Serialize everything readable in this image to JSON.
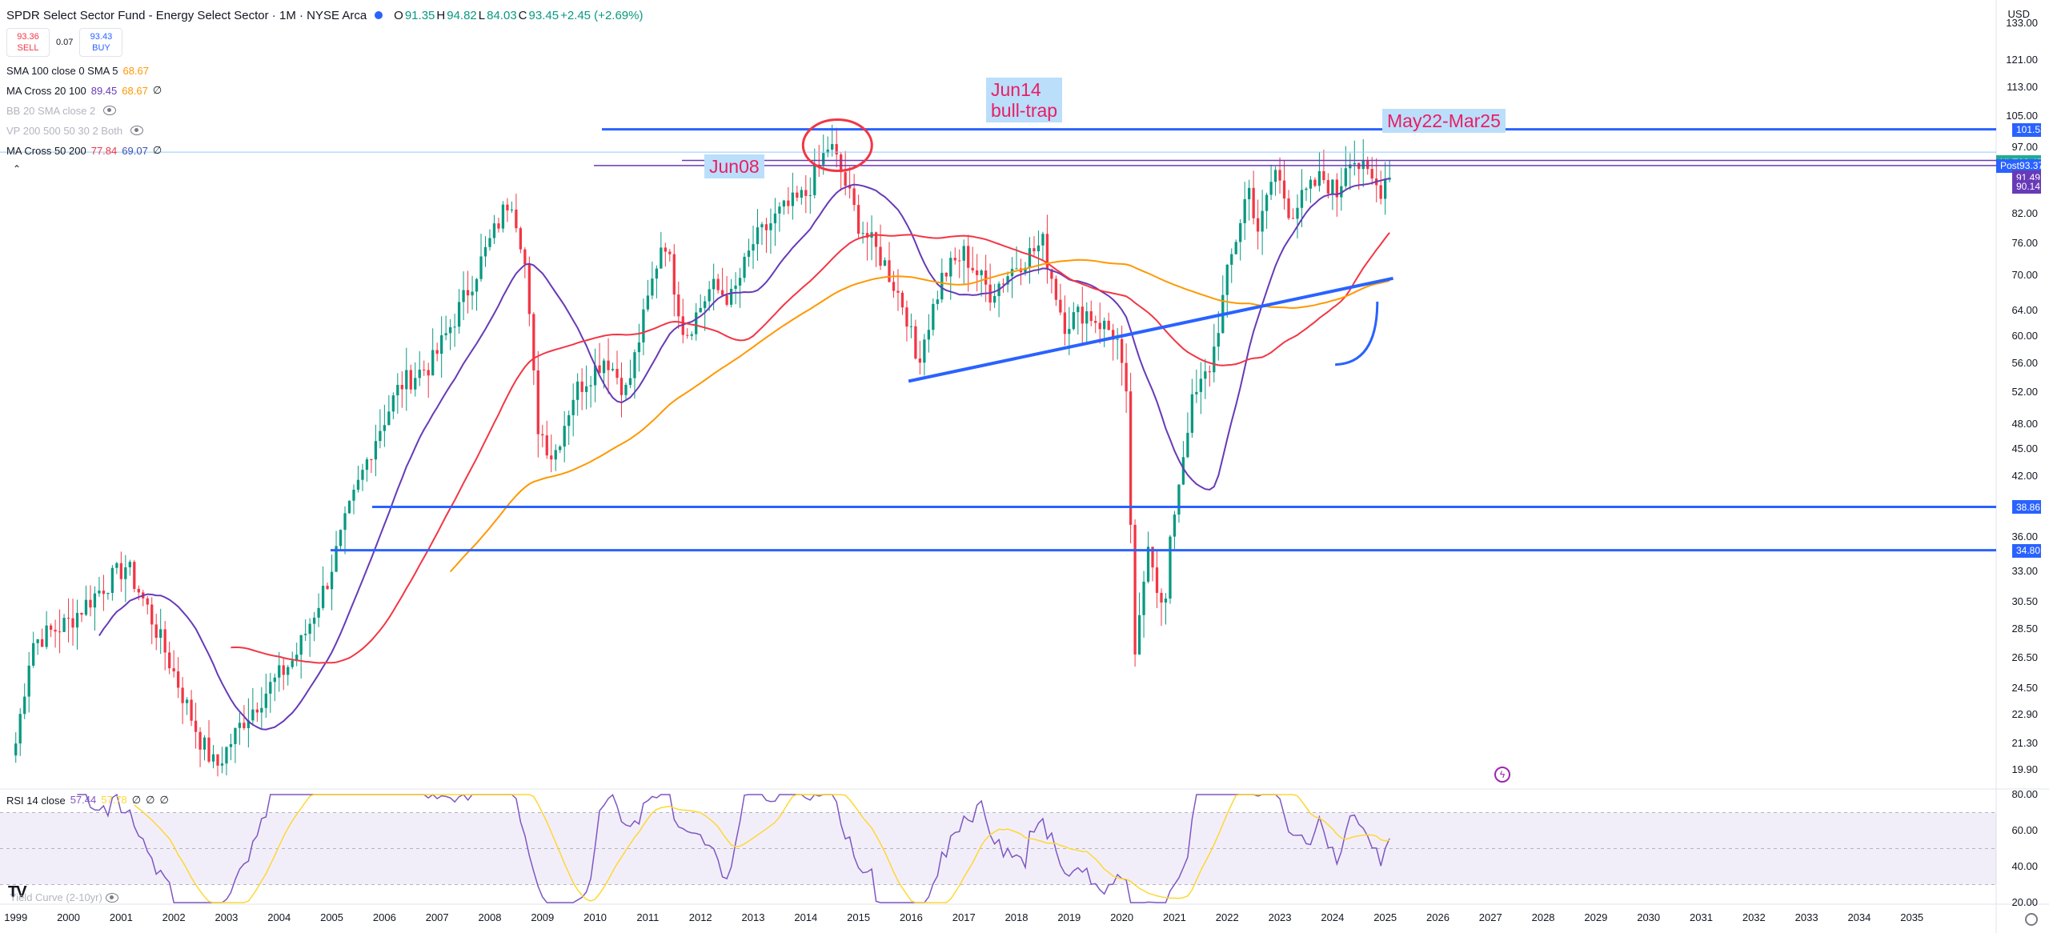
{
  "header": {
    "title": "SPDR Select Sector Fund - Energy Select Sector · 1M · NYSE Arca",
    "ohlc": [
      {
        "label": "O",
        "value": "91.35"
      },
      {
        "label": "H",
        "value": "94.82"
      },
      {
        "label": "L",
        "value": "84.03"
      },
      {
        "label": "C",
        "value": "93.45"
      }
    ],
    "change": "+2.45 (+2.69%)",
    "currency": "USD"
  },
  "trade": {
    "sell_price": "93.36",
    "sell_label": "SELL",
    "spread": "0.07",
    "buy_price": "93.43",
    "buy_label": "BUY"
  },
  "indicators": [
    {
      "name": "SMA 100 close 0 SMA 5",
      "values": [
        {
          "v": "68.67",
          "color": "#ff9800"
        }
      ],
      "dim": false
    },
    {
      "name": "MA Cross 20 100",
      "values": [
        {
          "v": "89.45",
          "color": "#673ab7"
        },
        {
          "v": "68.67",
          "color": "#ff9800"
        },
        {
          "v": "∅",
          "color": "#131722"
        }
      ],
      "dim": false
    },
    {
      "name": "BB 20 SMA close 2",
      "values": [],
      "dim": true
    },
    {
      "name": "VP 200 500 50 30 2 Both",
      "values": [],
      "dim": true
    },
    {
      "name": "MA Cross 50 200",
      "values": [
        {
          "v": "77.84",
          "color": "#f23645"
        },
        {
          "v": "69.07",
          "color": "#3f51b5"
        },
        {
          "v": "∅",
          "color": "#131722"
        }
      ],
      "dim": false
    }
  ],
  "rsi_legend": {
    "name": "RSI 14 close",
    "values": [
      {
        "v": "57.44",
        "color": "#7e57c2"
      },
      {
        "v": "57.78",
        "color": "#fdd835"
      },
      {
        "v": "∅",
        "color": "#131722"
      },
      {
        "v": "∅",
        "color": "#131722"
      },
      {
        "v": "∅",
        "color": "#131722"
      }
    ]
  },
  "yield_label": "Yield Curve (2-10yr)",
  "logo": "TV",
  "annotations": {
    "jun08": "Jun08",
    "jun14": "Jun14\nbull-trap",
    "may22": "May22-Mar25"
  },
  "price_tags": [
    {
      "label": "",
      "value": "101.53",
      "color": "#2962ff",
      "price": 101.53
    },
    {
      "label": "XLE",
      "value": "93.45",
      "color": "#22ab94",
      "price": 93.45
    },
    {
      "label": "Post",
      "value": "93.37",
      "color": "#2962ff",
      "price": 92.6
    },
    {
      "label": "",
      "value": "91.49",
      "color": "#673ab7",
      "price": 89.9
    },
    {
      "label": "",
      "value": "90.14",
      "color": "#673ab7",
      "price": 87.8
    },
    {
      "label": "",
      "value": "38.86",
      "color": "#2962ff",
      "price": 38.86
    },
    {
      "label": "",
      "value": "34.80",
      "color": "#2962ff",
      "price": 34.8
    }
  ],
  "chart_data": {
    "type": "candlestick",
    "title": "SPDR Select Sector Fund - Energy Select Sector · 1M · NYSE Arca",
    "y_scale": "log",
    "ylim": [
      19,
      136
    ],
    "y_ticks": [
      "133.00",
      "121.00",
      "113.00",
      "105.00",
      "97.00",
      "89.00",
      "82.00",
      "76.00",
      "70.00",
      "64.00",
      "60.00",
      "56.00",
      "52.00",
      "48.00",
      "45.00",
      "42.00",
      "36.00",
      "33.00",
      "30.50",
      "28.50",
      "26.50",
      "24.50",
      "22.90",
      "21.30",
      "19.90"
    ],
    "x_ticks": [
      "1999",
      "2000",
      "2001",
      "2002",
      "2003",
      "2004",
      "2005",
      "2006",
      "2007",
      "2008",
      "2009",
      "2010",
      "2011",
      "2012",
      "2013",
      "2014",
      "2015",
      "2016",
      "2017",
      "2018",
      "2019",
      "2020",
      "2021",
      "2022",
      "2023",
      "2024",
      "2025",
      "2026",
      "2027",
      "2028",
      "2029",
      "2030",
      "2031",
      "2032",
      "2033",
      "2034",
      "2035"
    ],
    "xlim": [
      1998.7,
      2036.6
    ],
    "price_path": [
      [
        1999.0,
        21.3
      ],
      [
        1999.3,
        27.5
      ],
      [
        2000.0,
        29.0
      ],
      [
        2000.6,
        31.5
      ],
      [
        2001.1,
        33.5
      ],
      [
        2001.5,
        30.0
      ],
      [
        2002.0,
        25.5
      ],
      [
        2002.5,
        21.5
      ],
      [
        2002.8,
        20.0
      ],
      [
        2003.3,
        22.5
      ],
      [
        2003.8,
        24.5
      ],
      [
        2004.3,
        26.5
      ],
      [
        2004.9,
        32.0
      ],
      [
        2005.3,
        38.0
      ],
      [
        2005.8,
        46.0
      ],
      [
        2006.3,
        53.0
      ],
      [
        2006.9,
        56.0
      ],
      [
        2007.4,
        64.0
      ],
      [
        2007.9,
        74.0
      ],
      [
        2008.4,
        86.0
      ],
      [
        2008.65,
        74.0
      ],
      [
        2008.9,
        48.0
      ],
      [
        2009.2,
        44.0
      ],
      [
        2009.6,
        52.0
      ],
      [
        2010.2,
        57.0
      ],
      [
        2010.6,
        52.0
      ],
      [
        2010.9,
        62.0
      ],
      [
        2011.3,
        78.0
      ],
      [
        2011.7,
        60.0
      ],
      [
        2012.2,
        68.0
      ],
      [
        2012.6,
        66.0
      ],
      [
        2013.0,
        76.0
      ],
      [
        2013.5,
        82.0
      ],
      [
        2014.0,
        86.0
      ],
      [
        2014.45,
        98.0
      ],
      [
        2014.7,
        90.0
      ],
      [
        2015.0,
        80.0
      ],
      [
        2015.5,
        72.0
      ],
      [
        2015.9,
        64.0
      ],
      [
        2016.1,
        56.0
      ],
      [
        2016.6,
        70.0
      ],
      [
        2017.0,
        74.0
      ],
      [
        2017.5,
        67.0
      ],
      [
        2018.0,
        72.0
      ],
      [
        2018.5,
        76.0
      ],
      [
        2018.9,
        62.0
      ],
      [
        2019.3,
        64.0
      ],
      [
        2019.9,
        60.0
      ],
      [
        2020.1,
        50.0
      ],
      [
        2020.25,
        26.0
      ],
      [
        2020.5,
        36.0
      ],
      [
        2020.8,
        29.0
      ],
      [
        2020.95,
        37.0
      ],
      [
        2021.3,
        50.0
      ],
      [
        2021.7,
        56.0
      ],
      [
        2022.0,
        70.0
      ],
      [
        2022.4,
        88.0
      ],
      [
        2022.6,
        78.0
      ],
      [
        2022.9,
        92.0
      ],
      [
        2023.2,
        82.0
      ],
      [
        2023.5,
        86.0
      ],
      [
        2023.8,
        90.0
      ],
      [
        2024.1,
        86.0
      ],
      [
        2024.3,
        96.0
      ],
      [
        2024.6,
        91.0
      ],
      [
        2024.9,
        87.0
      ],
      [
        2025.15,
        93.45
      ]
    ],
    "horizontal_levels": [
      {
        "price": 101.53,
        "color": "#2962ff"
      },
      {
        "price": 92.6,
        "color": "#673ab7"
      },
      {
        "price": 38.86,
        "color": "#2962ff"
      },
      {
        "price": 34.8,
        "color": "#2962ff"
      }
    ],
    "rsi": {
      "ylim": [
        20,
        80
      ],
      "y_ticks": [
        "80.00",
        "60.00",
        "40.00",
        "20.00"
      ],
      "band": [
        30,
        70
      ],
      "last": 57.44,
      "signal_last": 57.78
    }
  }
}
